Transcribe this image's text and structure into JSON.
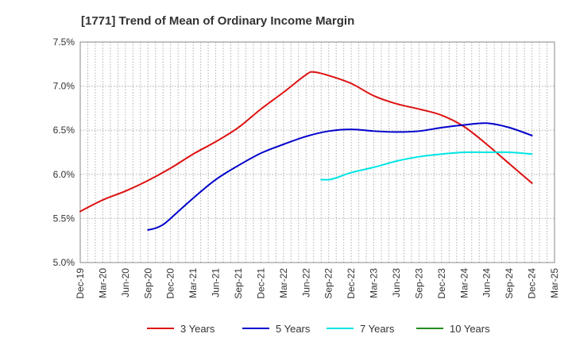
{
  "chart_data": {
    "type": "line",
    "title": "[1771]  Trend of Mean of Ordinary Income Margin",
    "xlabel": "",
    "ylabel": "",
    "x_tick_labels": [
      "Dec-19",
      "Mar-20",
      "Jun-20",
      "Sep-20",
      "Dec-20",
      "Mar-21",
      "Jun-21",
      "Sep-21",
      "Dec-21",
      "Mar-22",
      "Jun-22",
      "Sep-22",
      "Dec-22",
      "Mar-23",
      "Jun-23",
      "Sep-23",
      "Dec-23",
      "Mar-24",
      "Jun-24",
      "Sep-24",
      "Dec-24",
      "Mar-25"
    ],
    "y_tick_labels": [
      "5.0%",
      "5.5%",
      "6.0%",
      "6.5%",
      "7.0%",
      "7.5%"
    ],
    "ylim": [
      5.0,
      7.5
    ],
    "y_unit": "%",
    "grid": true,
    "legend_position": "bottom",
    "series": [
      {
        "name": "3 Years",
        "color": "#dd1111",
        "x": [
          "Dec-19",
          "Mar-20",
          "Jun-20",
          "Sep-20",
          "Dec-20",
          "Mar-21",
          "Jun-21",
          "Sep-21",
          "Dec-21",
          "Mar-22",
          "Jun-22",
          "Jul-22",
          "Sep-22",
          "Dec-22",
          "Mar-23",
          "Jun-23",
          "Sep-23",
          "Dec-23",
          "Mar-24",
          "Jun-24",
          "Sep-24",
          "Dec-24"
        ],
        "values": [
          5.58,
          5.71,
          5.81,
          5.93,
          6.07,
          6.23,
          6.37,
          6.53,
          6.74,
          6.93,
          7.13,
          7.16,
          7.12,
          7.03,
          6.89,
          6.8,
          6.74,
          6.67,
          6.54,
          6.34,
          6.12,
          5.9
        ]
      },
      {
        "name": "5 Years",
        "color": "#0000cc",
        "x": [
          "Sep-20",
          "Oct-20",
          "Nov-20",
          "Dec-20",
          "Mar-21",
          "Jun-21",
          "Sep-21",
          "Dec-21",
          "Mar-22",
          "Jun-22",
          "Sep-22",
          "Dec-22",
          "Mar-23",
          "Jun-23",
          "Sep-23",
          "Dec-23",
          "Mar-24",
          "Jun-24",
          "Sep-24",
          "Dec-24"
        ],
        "values": [
          5.37,
          5.39,
          5.43,
          5.5,
          5.73,
          5.94,
          6.1,
          6.24,
          6.34,
          6.43,
          6.49,
          6.51,
          6.49,
          6.48,
          6.49,
          6.53,
          6.56,
          6.58,
          6.53,
          6.44
        ]
      },
      {
        "name": "7 Years",
        "color": "#00e5e5",
        "x": [
          "Aug-22",
          "Sep-22",
          "Oct-22",
          "Dec-22",
          "Mar-23",
          "Jun-23",
          "Sep-23",
          "Dec-23",
          "Mar-24",
          "Jun-24",
          "Sep-24",
          "Dec-24"
        ],
        "values": [
          5.94,
          5.94,
          5.96,
          6.02,
          6.08,
          6.15,
          6.2,
          6.23,
          6.25,
          6.25,
          6.25,
          6.23
        ]
      },
      {
        "name": "10 Years",
        "color": "#228b22",
        "x": [],
        "values": []
      }
    ]
  }
}
